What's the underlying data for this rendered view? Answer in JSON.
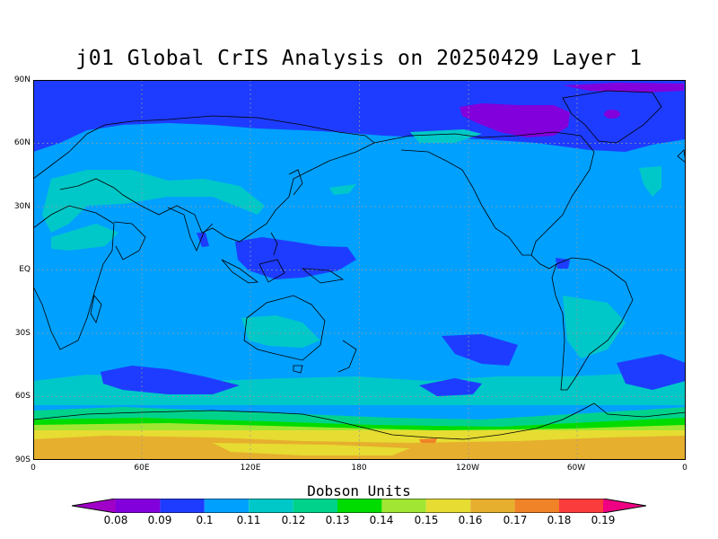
{
  "title": "j01 Global CrIS Analysis on 20250429 Layer 1",
  "colorbar": {
    "title": "Dobson Units",
    "labels": [
      "0.08",
      "0.09",
      "0.1",
      "0.11",
      "0.12",
      "0.13",
      "0.14",
      "0.15",
      "0.16",
      "0.17",
      "0.18",
      "0.19"
    ],
    "colors": [
      "#a000c8",
      "#8200dc",
      "#1e3cff",
      "#00a0ff",
      "#00c8c8",
      "#00d28c",
      "#00dc00",
      "#a0e632",
      "#e6dc32",
      "#e6af2d",
      "#f08228",
      "#fa3c3c",
      "#f00082"
    ]
  },
  "axes": {
    "lat_ticks": [
      "90N",
      "60N",
      "30N",
      "EQ",
      "30S",
      "60S",
      "90S"
    ],
    "lon_ticks": [
      "0",
      "60E",
      "120E",
      "180",
      "120W",
      "60W",
      "0"
    ]
  },
  "map": {
    "projection": "cylindrical equidistant, centered 180",
    "field": "ozone column, layer 1"
  }
}
